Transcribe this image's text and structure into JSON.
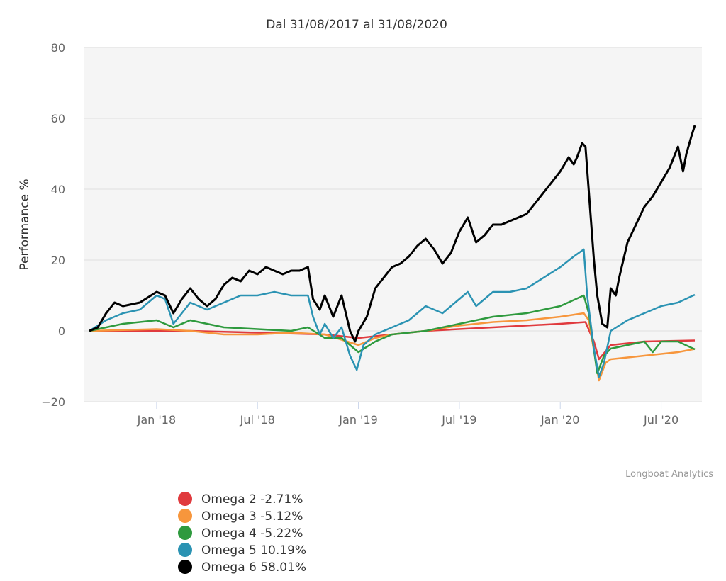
{
  "chart_data": {
    "type": "line",
    "title": "Dal 31/08/2017 al 31/08/2020",
    "xlabel": "",
    "ylabel": "Performance %",
    "ylim": [
      -20,
      80
    ],
    "yticks": [
      -20,
      0,
      20,
      40,
      60,
      80
    ],
    "ytick_labels": [
      "−20",
      "0",
      "20",
      "40",
      "60",
      "80"
    ],
    "x_unit": "months since 31/08/2017",
    "xlim": [
      0,
      36
    ],
    "xticks": [
      4,
      10,
      16,
      22,
      28,
      34
    ],
    "xtick_labels": [
      "Jan '18",
      "Jul '18",
      "Jan '19",
      "Jul '19",
      "Jan '20",
      "Jul '20"
    ],
    "grid": true,
    "legend_position": "bottom-left",
    "credits": "Longboat Analytics",
    "series": [
      {
        "name": "Omega 2",
        "label": "Omega 2 -2.71%",
        "color": "#e03a3e",
        "x": [
          0,
          6,
          10,
          14,
          16,
          17,
          20,
          24,
          28,
          29.5,
          30,
          30.3,
          31,
          33,
          36
        ],
        "y": [
          0,
          0,
          -0.5,
          -1,
          -2,
          -1.5,
          0,
          1,
          2,
          2.5,
          -3,
          -8,
          -4,
          -3,
          -2.7
        ]
      },
      {
        "name": "Omega 3",
        "label": "Omega 3 -5.12%",
        "color": "#f7963c",
        "x": [
          0,
          4,
          6,
          8,
          10,
          12,
          14,
          16,
          17,
          18,
          20,
          22,
          24,
          26,
          28,
          29.4,
          29.7,
          30.3,
          30.7,
          31,
          33,
          35,
          36
        ],
        "y": [
          0,
          0.5,
          0,
          -1,
          -1,
          -0.5,
          -1,
          -4,
          -2,
          -1,
          0,
          1.5,
          2.5,
          3,
          4,
          5,
          3,
          -14,
          -9,
          -8,
          -7,
          -6,
          -5.1
        ]
      },
      {
        "name": "Omega 4",
        "label": "Omega 4 -5.22%",
        "color": "#2e9a3e",
        "x": [
          0,
          2,
          4,
          5,
          6,
          8,
          10,
          12,
          13,
          14,
          15,
          16,
          17,
          18,
          20,
          22,
          24,
          26,
          28,
          29.4,
          29.7,
          30.2,
          30.6,
          31,
          32,
          33,
          33.5,
          34,
          35,
          36
        ],
        "y": [
          0,
          2,
          3,
          1,
          3,
          1,
          0.5,
          0,
          1,
          -2,
          -2,
          -6,
          -3,
          -1,
          0,
          2,
          4,
          5,
          7,
          10,
          5,
          -12,
          -7,
          -5,
          -4,
          -3,
          -6,
          -3,
          -3,
          -5.2
        ]
      },
      {
        "name": "Omega 5",
        "label": "Omega 5 10.19%",
        "color": "#2b93b3",
        "x": [
          0,
          1,
          2,
          3,
          4,
          4.5,
          5,
          6,
          7,
          8,
          9,
          10,
          11,
          12,
          13,
          13.3,
          13.7,
          14,
          14.5,
          15,
          15.5,
          15.9,
          16.3,
          17,
          18,
          19,
          20,
          21,
          22,
          22.5,
          23,
          24,
          25,
          26,
          27,
          28,
          28.8,
          29.4,
          29.6,
          30,
          30.3,
          30.6,
          31,
          32,
          33,
          34,
          35,
          36
        ],
        "y": [
          0,
          3,
          5,
          6,
          10,
          9,
          2,
          8,
          6,
          8,
          10,
          10,
          11,
          10,
          10,
          4,
          -1,
          2,
          -2,
          1,
          -7,
          -11,
          -4,
          -1,
          1,
          3,
          7,
          5,
          9,
          11,
          7,
          11,
          11,
          12,
          15,
          18,
          21,
          23,
          10,
          -5,
          -13,
          -9,
          0,
          3,
          5,
          7,
          8,
          10.2
        ]
      },
      {
        "name": "Omega 6",
        "label": "Omega 6 58.01%",
        "color": "#000000",
        "x": [
          0,
          0.5,
          1,
          1.5,
          2,
          3,
          4,
          4.5,
          5,
          5.5,
          6,
          6.5,
          7,
          7.5,
          8,
          8.5,
          9,
          9.5,
          10,
          10.5,
          11,
          11.5,
          12,
          12.5,
          13,
          13.3,
          13.7,
          14,
          14.5,
          15,
          15.5,
          15.8,
          16,
          16.5,
          17,
          17.5,
          18,
          18.5,
          19,
          19.5,
          20,
          20.5,
          21,
          21.5,
          22,
          22.5,
          23,
          23.5,
          24,
          24.5,
          25,
          25.5,
          26,
          26.5,
          27,
          27.5,
          28,
          28.5,
          28.8,
          29,
          29.3,
          29.5,
          30,
          30.2,
          30.5,
          30.8,
          31,
          31.3,
          31.5,
          32,
          32.5,
          33,
          33.5,
          34,
          34.5,
          35,
          35.3,
          35.5,
          35.8,
          36
        ],
        "y": [
          0,
          1,
          5,
          8,
          7,
          8,
          11,
          10,
          5,
          9,
          12,
          9,
          7,
          9,
          13,
          15,
          14,
          17,
          16,
          18,
          17,
          16,
          17,
          17,
          18,
          9,
          6,
          10,
          4,
          10,
          0,
          -3,
          0,
          4,
          12,
          15,
          18,
          19,
          21,
          24,
          26,
          23,
          19,
          22,
          28,
          32,
          25,
          27,
          30,
          30,
          31,
          32,
          33,
          36,
          39,
          42,
          45,
          49,
          47,
          49,
          53,
          52,
          20,
          10,
          2,
          1,
          12,
          10,
          15,
          25,
          30,
          35,
          38,
          42,
          46,
          52,
          45,
          50,
          55,
          58
        ]
      }
    ]
  }
}
